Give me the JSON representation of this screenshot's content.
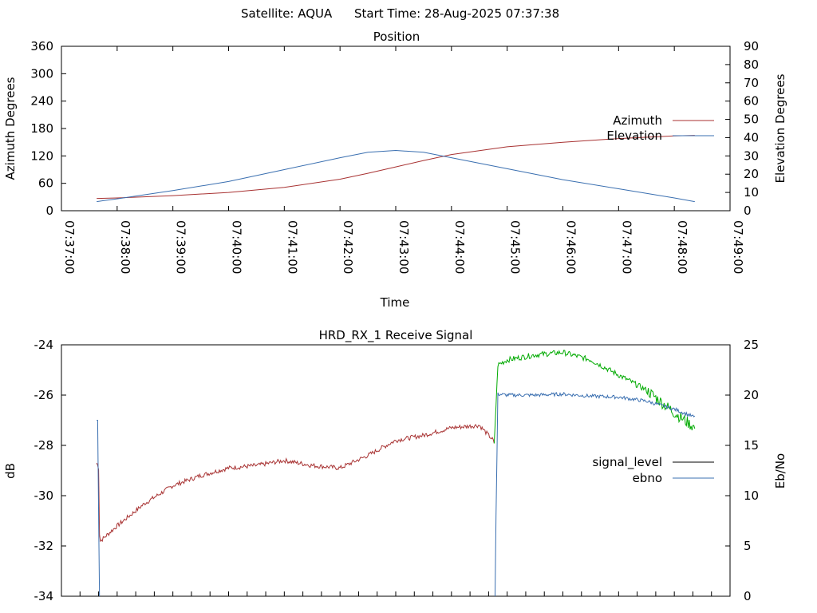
{
  "header": {
    "satellite_label": "Satellite: AQUA",
    "start_label": "Start Time: 28-Aug-2025 07:37:38"
  },
  "colors": {
    "azimuth": "#a83232",
    "elevation": "#3a6fb0",
    "signal_level_legend": "#000000",
    "ebno": "#3a6fb0",
    "signal_dark": "#a83232",
    "signal_green": "#00aa00"
  },
  "chart_data": [
    {
      "type": "line",
      "title": "Position",
      "xlabel": "Time",
      "ylabel": "Azimuth Degrees",
      "ylabel_right": "Elevation Degrees",
      "legend_position": "right",
      "x_ticks": [
        "07:37:00",
        "07:38:00",
        "07:39:00",
        "07:40:00",
        "07:41:00",
        "07:42:00",
        "07:43:00",
        "07:44:00",
        "07:45:00",
        "07:46:00",
        "07:47:00",
        "07:48:00",
        "07:49:00"
      ],
      "xlim": [
        "07:37:00",
        "07:49:00"
      ],
      "ylim_left": [
        0,
        360
      ],
      "ylim_right": [
        0,
        90
      ],
      "y_ticks_left": [
        "0",
        "60",
        "120",
        "180",
        "240",
        "300",
        "360"
      ],
      "y_ticks_right": [
        "0",
        "10",
        "20",
        "30",
        "40",
        "50",
        "60",
        "70",
        "80",
        "90"
      ],
      "series": [
        {
          "name": "Azimuth",
          "axis": "left",
          "x": [
            "07:37:38",
            "07:38:00",
            "07:39:00",
            "07:40:00",
            "07:41:00",
            "07:42:00",
            "07:42:30",
            "07:43:00",
            "07:43:30",
            "07:44:00",
            "07:45:00",
            "07:46:00",
            "07:47:00",
            "07:48:00",
            "07:48:22"
          ],
          "values": [
            27,
            28,
            33,
            40,
            51,
            69,
            82,
            96,
            110,
            123,
            140,
            150,
            158,
            164,
            165
          ]
        },
        {
          "name": "Elevation",
          "axis": "right",
          "x": [
            "07:37:38",
            "07:38:00",
            "07:39:00",
            "07:40:00",
            "07:41:00",
            "07:42:00",
            "07:42:30",
            "07:43:00",
            "07:43:30",
            "07:44:00",
            "07:45:00",
            "07:46:00",
            "07:47:00",
            "07:48:00",
            "07:48:22"
          ],
          "values": [
            5,
            6.5,
            11,
            16,
            22.5,
            29,
            32,
            33,
            32,
            29,
            23,
            17,
            12,
            7,
            5
          ]
        }
      ]
    },
    {
      "type": "line",
      "title": "HRD_RX_1 Receive Signal",
      "ylabel": "dB",
      "ylabel_right": "Eb/No",
      "legend_position": "right",
      "xlim": [
        "07:37:00",
        "07:49:00"
      ],
      "ylim_left": [
        -34,
        -24
      ],
      "ylim_right": [
        0,
        25
      ],
      "y_ticks_left": [
        "-24",
        "-26",
        "-28",
        "-30",
        "-32",
        "-34"
      ],
      "y_ticks_right": [
        "25",
        "20",
        "15",
        "10",
        "5",
        "0"
      ],
      "series": [
        {
          "name": "signal_level",
          "axis": "left",
          "x": [
            "07:37:38",
            "07:37:40",
            "07:37:41",
            "07:37:42",
            "07:38:00",
            "07:38:30",
            "07:39:00",
            "07:39:30",
            "07:40:00",
            "07:40:30",
            "07:41:00",
            "07:41:30",
            "07:42:00",
            "07:42:30",
            "07:43:00",
            "07:43:30",
            "07:44:00",
            "07:44:30",
            "07:44:45",
            "07:44:46",
            "07:44:50",
            "07:45:00",
            "07:45:30",
            "07:46:00",
            "07:46:30",
            "07:47:00",
            "07:47:30",
            "07:48:00",
            "07:48:22"
          ],
          "values": [
            -28.7,
            -28.9,
            -31.5,
            -31.8,
            -31.2,
            -30.3,
            -29.6,
            -29.2,
            -28.9,
            -28.8,
            -28.6,
            -28.8,
            -28.9,
            -28.4,
            -27.8,
            -27.6,
            -27.3,
            -27.2,
            -27.8,
            -28.0,
            -24.8,
            -24.6,
            -24.4,
            -24.3,
            -24.6,
            -25.2,
            -25.8,
            -26.7,
            -27.3
          ]
        },
        {
          "name": "ebno",
          "axis": "right",
          "x": [
            "07:37:38",
            "07:37:39",
            "07:37:40",
            "07:37:41",
            "07:44:47",
            "07:44:48",
            "07:44:50",
            "07:45:00",
            "07:45:30",
            "07:46:00",
            "07:46:30",
            "07:47:00",
            "07:47:30",
            "07:48:00",
            "07:48:22"
          ],
          "values": [
            17.5,
            17.5,
            8,
            0,
            0,
            8,
            20.1,
            20.0,
            20.0,
            20.1,
            19.9,
            19.8,
            19.4,
            18.6,
            17.8
          ]
        }
      ]
    }
  ]
}
